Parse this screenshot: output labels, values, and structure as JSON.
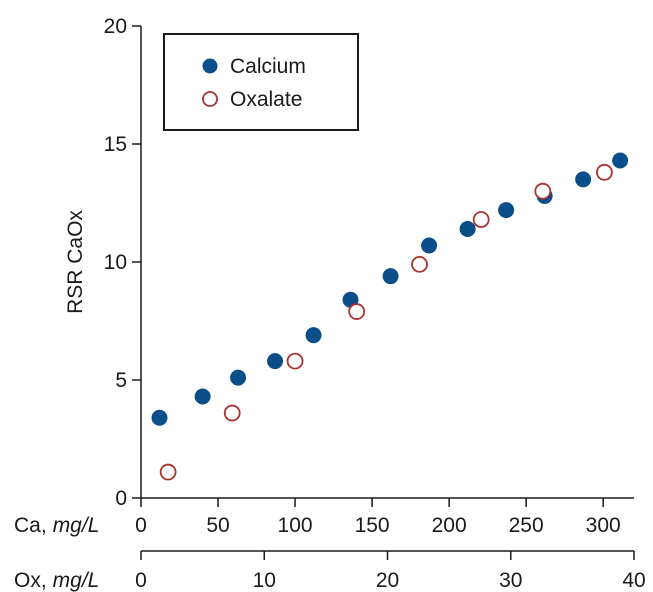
{
  "chart_data": {
    "type": "scatter",
    "ylabel": "RSR CaOx",
    "ylim": [
      0,
      20
    ],
    "yticks": [
      "0",
      "5",
      "10",
      "15",
      "20"
    ],
    "x_axes": [
      {
        "label_prefix": "Ca,",
        "label_unit": "mg/L",
        "xlim": [
          0,
          320
        ],
        "ticks": [
          "0",
          "50",
          "100",
          "150",
          "200",
          "250",
          "300"
        ]
      },
      {
        "label_prefix": "Ox,",
        "label_unit": "mg/L",
        "xlim": [
          0,
          40
        ],
        "ticks": [
          "0",
          "10",
          "20",
          "30",
          "40"
        ]
      }
    ],
    "legend": {
      "position": "top-left"
    },
    "series": [
      {
        "name": "Calcium",
        "axis": "Ca",
        "marker": "filled-circle",
        "color": "#0b4f8a",
        "x": [
          12,
          40,
          63,
          87,
          112,
          136,
          162,
          187,
          212,
          237,
          262,
          287,
          311
        ],
        "y": [
          3.4,
          4.3,
          5.1,
          5.8,
          6.9,
          8.4,
          9.4,
          10.7,
          11.4,
          12.2,
          12.8,
          13.5,
          14.3
        ]
      },
      {
        "name": "Oxalate",
        "axis": "Ox",
        "marker": "open-circle",
        "color": "#a8332e",
        "x": [
          2.2,
          7.4,
          12.5,
          17.5,
          22.6,
          27.6,
          32.6,
          37.6
        ],
        "y": [
          1.1,
          3.6,
          5.8,
          7.9,
          9.9,
          11.8,
          13.0,
          13.8
        ]
      }
    ]
  }
}
